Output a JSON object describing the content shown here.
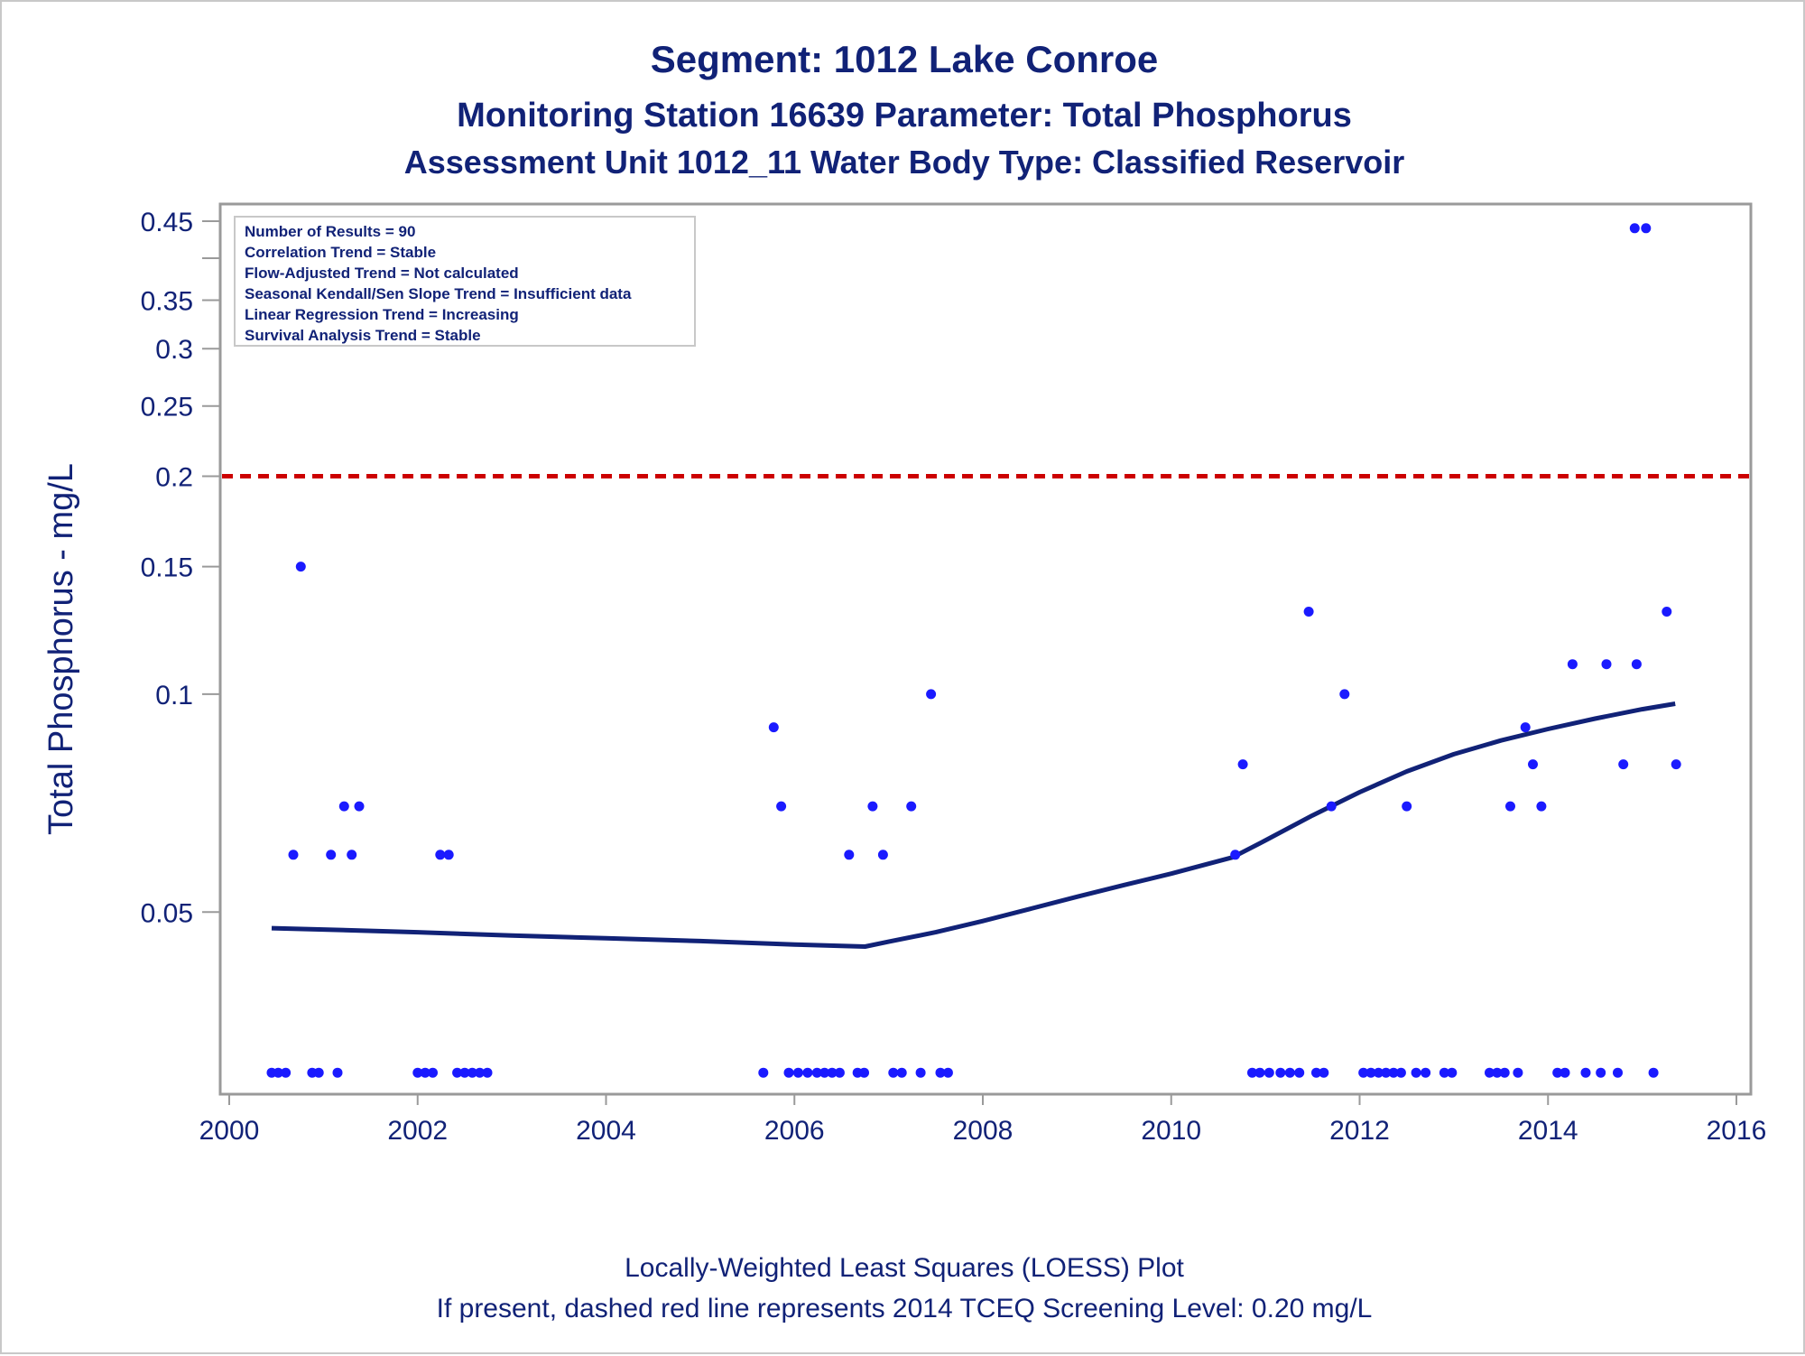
{
  "chart_data": {
    "type": "scatter",
    "title": "Segment: 1012  Lake Conroe",
    "subtitle1": "Monitoring Station 16639 Parameter: Total Phosphorus",
    "subtitle2": "Assessment Unit 1012_11   Water Body Type: Classified Reservoir",
    "ylabel": "Total Phosphorus - mg/L",
    "xlabel": "",
    "y_scale": "log",
    "xlim": [
      2000,
      2016
    ],
    "ylim": [
      0.029,
      0.45
    ],
    "x_ticks": [
      2000,
      2002,
      2004,
      2006,
      2008,
      2010,
      2012,
      2014,
      2016
    ],
    "x_tick_labels": [
      "2000",
      "2002",
      "2004",
      "2006",
      "2008",
      "2010",
      "2012",
      "2014",
      "2016"
    ],
    "y_ticks": [
      0.05,
      0.1,
      0.15,
      0.2,
      0.25,
      0.3,
      0.35,
      0.4,
      0.45
    ],
    "y_tick_labels": [
      "0.05",
      "0.1",
      "0.15",
      "0.2",
      "0.25",
      "0.3",
      "0.35",
      "",
      "0.45"
    ],
    "grid": false,
    "screening_level": {
      "y": 0.2,
      "color": "#cc0000",
      "style": "dashed"
    },
    "stats_box": {
      "position": "top-left",
      "lines": [
        "Number of Results = 90",
        "Correlation Trend = Stable",
        "Flow-Adjusted Trend = Not calculated",
        "Seasonal Kendall/Sen Slope Trend = Insufficient data",
        "Linear Regression Trend = Increasing",
        "Survival Analysis Trend = Stable"
      ]
    },
    "footer": [
      "Locally-Weighted Least Squares (LOESS) Plot",
      "If present, dashed red line represents 2014 TCEQ Screening Level: 0.20 mg/L"
    ],
    "colors": {
      "points": "#1a1aff",
      "loess": "#112277",
      "text": "#112277",
      "frame": "#9a9a9a"
    },
    "loess_series": {
      "x": [
        2000.45,
        2001.0,
        2002.0,
        2003.0,
        2004.0,
        2005.0,
        2006.0,
        2006.5,
        2006.75,
        2007.0,
        2007.5,
        2008.0,
        2008.5,
        2009.0,
        2009.5,
        2010.0,
        2010.65,
        2011.0,
        2011.5,
        2012.0,
        2012.5,
        2013.0,
        2013.5,
        2014.0,
        2014.5,
        2015.0,
        2015.35
      ],
      "y": [
        0.0475,
        0.0473,
        0.0469,
        0.0464,
        0.046,
        0.0456,
        0.0451,
        0.0449,
        0.0448,
        0.0455,
        0.0469,
        0.0486,
        0.0505,
        0.0525,
        0.0545,
        0.0565,
        0.0595,
        0.0628,
        0.068,
        0.0732,
        0.0782,
        0.0826,
        0.0863,
        0.0895,
        0.0925,
        0.0953,
        0.097
      ]
    },
    "series": [
      {
        "x": [
          2000.45,
          2000.52,
          2000.6,
          2000.68,
          2000.76,
          2000.88,
          2000.95,
          2001.08,
          2001.15,
          2001.22,
          2001.3,
          2001.38,
          2002.0,
          2002.08,
          2002.16,
          2002.24,
          2002.33,
          2002.42,
          2002.5,
          2002.58,
          2002.66,
          2002.74,
          2005.67,
          2005.78,
          2005.86,
          2005.94,
          2006.04,
          2006.14,
          2006.24,
          2006.32,
          2006.4,
          2006.48,
          2006.58,
          2006.67,
          2006.74,
          2006.83,
          2006.94,
          2007.05,
          2007.14,
          2007.24,
          2007.34,
          2007.45,
          2007.55,
          2007.63,
          2010.68,
          2010.76,
          2010.86,
          2010.94,
          2011.04,
          2011.16,
          2011.26,
          2011.36,
          2011.46,
          2011.54,
          2011.62,
          2011.7,
          2011.84,
          2012.04,
          2012.12,
          2012.2,
          2012.28,
          2012.36,
          2012.44,
          2012.5,
          2012.6,
          2012.7,
          2012.9,
          2012.98,
          2013.38,
          2013.46,
          2013.54,
          2013.6,
          2013.68,
          2013.76,
          2013.84,
          2013.93,
          2014.1,
          2014.18,
          2014.26,
          2014.4,
          2014.56,
          2014.62,
          2014.74,
          2014.8,
          2014.94,
          2014.92,
          2015.04,
          2015.12,
          2015.26,
          2015.36
        ],
        "y": [
          0.03,
          0.03,
          0.03,
          0.06,
          0.15,
          0.03,
          0.03,
          0.06,
          0.03,
          0.07,
          0.06,
          0.07,
          0.03,
          0.03,
          0.03,
          0.06,
          0.06,
          0.03,
          0.03,
          0.03,
          0.03,
          0.03,
          0.03,
          0.09,
          0.07,
          0.03,
          0.03,
          0.03,
          0.03,
          0.03,
          0.03,
          0.03,
          0.06,
          0.03,
          0.03,
          0.07,
          0.06,
          0.03,
          0.03,
          0.07,
          0.03,
          0.1,
          0.03,
          0.03,
          0.06,
          0.08,
          0.03,
          0.03,
          0.03,
          0.03,
          0.03,
          0.03,
          0.13,
          0.03,
          0.03,
          0.07,
          0.1,
          0.03,
          0.03,
          0.03,
          0.03,
          0.03,
          0.03,
          0.07,
          0.03,
          0.03,
          0.03,
          0.03,
          0.03,
          0.03,
          0.03,
          0.07,
          0.03,
          0.09,
          0.08,
          0.07,
          0.03,
          0.03,
          0.11,
          0.03,
          0.03,
          0.11,
          0.03,
          0.08,
          0.11,
          0.44,
          0.44,
          0.03,
          0.13,
          0.08
        ]
      }
    ]
  }
}
